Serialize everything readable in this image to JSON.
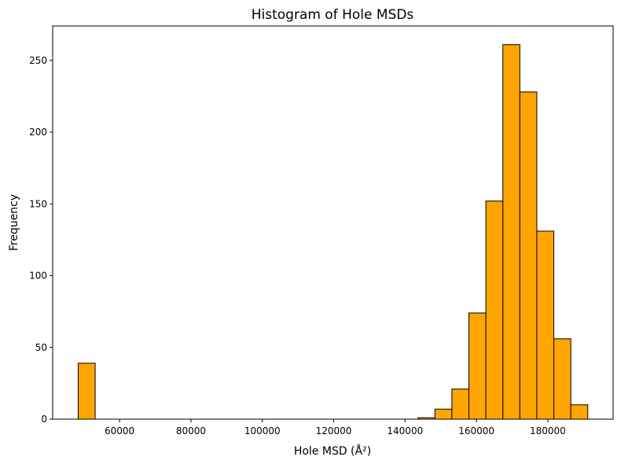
{
  "chart_data": {
    "type": "histogram",
    "title": "Histogram of Hole MSDs",
    "xlabel": "Hole MSD (Å²)",
    "ylabel": "Frequency",
    "bar_color": "#FFA500",
    "edge_color": "#000000",
    "bin_start": 48400,
    "bin_width": 4760,
    "counts": [
      39,
      0,
      0,
      0,
      0,
      0,
      0,
      0,
      0,
      0,
      0,
      0,
      0,
      0,
      0,
      0,
      0,
      0,
      0,
      0,
      1,
      7,
      21,
      74,
      152,
      261,
      228,
      131,
      56,
      10
    ],
    "xlim": [
      41250,
      198300
    ],
    "ylim": [
      0,
      274
    ],
    "xticks": [
      60000,
      80000,
      100000,
      120000,
      140000,
      160000,
      180000
    ],
    "xtick_labels": [
      "60000",
      "80000",
      "100000",
      "120000",
      "140000",
      "160000",
      "180000"
    ],
    "yticks": [
      0,
      50,
      100,
      150,
      200,
      250
    ],
    "ytick_labels": [
      "0",
      "50",
      "100",
      "150",
      "200",
      "250"
    ],
    "grid": false
  }
}
